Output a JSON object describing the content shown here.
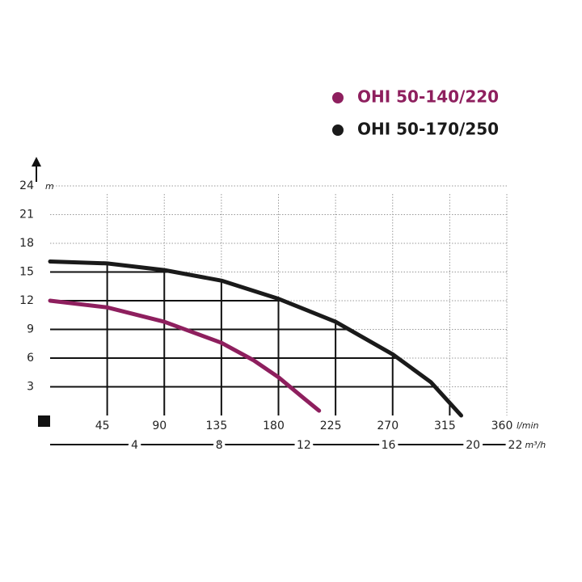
{
  "chart_data": {
    "type": "line",
    "y_unit": "m",
    "x_unit": "l/min",
    "x2_unit": "m³/h",
    "series": [
      {
        "name": "OHI 50-140/220",
        "color": "#8e1f5e",
        "x": [
          0,
          45,
          90,
          135,
          160,
          180,
          200,
          212
        ],
        "values": [
          12,
          11.3,
          9.8,
          7.6,
          5.8,
          4.0,
          1.8,
          0.5
        ]
      },
      {
        "name": "OHI 50-170/250",
        "color": "#1a1a1a",
        "x": [
          0,
          45,
          90,
          135,
          180,
          225,
          270,
          300,
          324
        ],
        "values": [
          16.1,
          15.9,
          15.2,
          14.1,
          12.2,
          9.8,
          6.4,
          3.5,
          0
        ]
      }
    ],
    "xlim": [
      0,
      360
    ],
    "xticks": [
      45,
      90,
      135,
      180,
      225,
      270,
      315,
      360
    ],
    "x2lim": [
      0,
      21.6
    ],
    "x2ticks": [
      4,
      8,
      12,
      16,
      20,
      22
    ],
    "ylim": [
      0,
      24
    ],
    "yticks": [
      3,
      6,
      9,
      12,
      15,
      18,
      21,
      24
    ],
    "grid": true
  }
}
